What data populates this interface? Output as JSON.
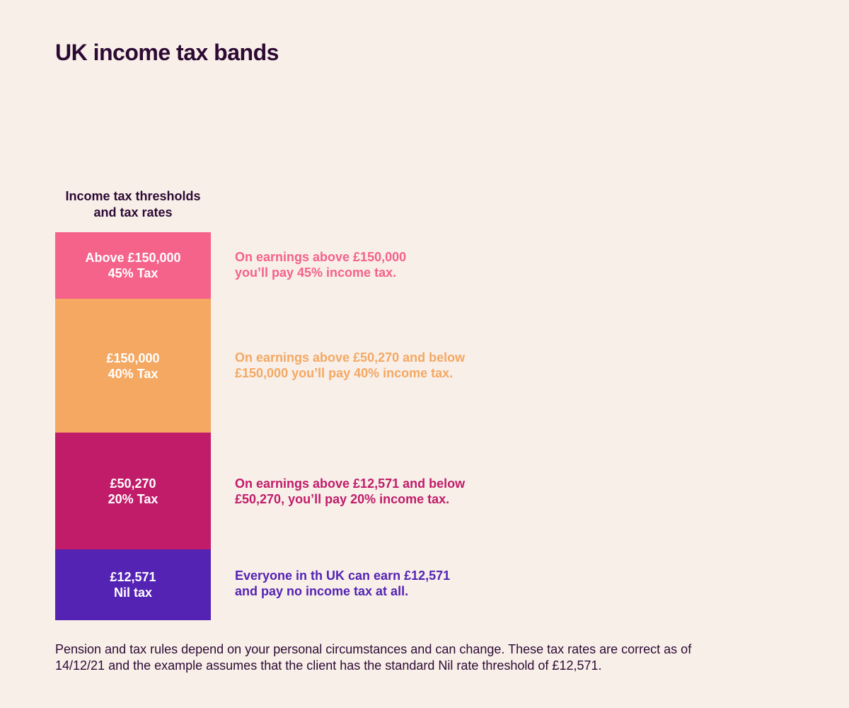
{
  "title": "UK income tax bands",
  "column_heading": {
    "line1": "Income tax thresholds",
    "line2": "and tax rates"
  },
  "colors": {
    "background": "#f8efe9",
    "text_dark": "#2c0a33",
    "band_45": "#f5628a",
    "band_40": "#f4a862",
    "band_20": "#c01c69",
    "band_nil": "#5423b4"
  },
  "bands": [
    {
      "threshold": "Above £150,000",
      "rate": "45% Tax",
      "description_line1": "On earnings above £150,000",
      "description_line2": "you’ll pay 45% income tax."
    },
    {
      "threshold": "£150,000",
      "rate": "40% Tax",
      "description_line1": "On earnings above £50,270 and below",
      "description_line2": "£150,000 you’ll pay 40% income tax."
    },
    {
      "threshold": "£50,270",
      "rate": "20% Tax",
      "description_line1": "On earnings above £12,571 and below",
      "description_line2": "£50,270, you’ll pay 20% income tax."
    },
    {
      "threshold": "£12,571",
      "rate": "Nil tax",
      "description_line1": "Everyone in th UK can earn £12,571",
      "description_line2": "and pay no income tax at all."
    }
  ],
  "footnote": {
    "line1": "Pension and tax rules depend on your personal circumstances and can change. These tax rates are correct as of",
    "line2": "14/12/21 and the example assumes that the client has the standard Nil rate threshold of £12,571."
  }
}
